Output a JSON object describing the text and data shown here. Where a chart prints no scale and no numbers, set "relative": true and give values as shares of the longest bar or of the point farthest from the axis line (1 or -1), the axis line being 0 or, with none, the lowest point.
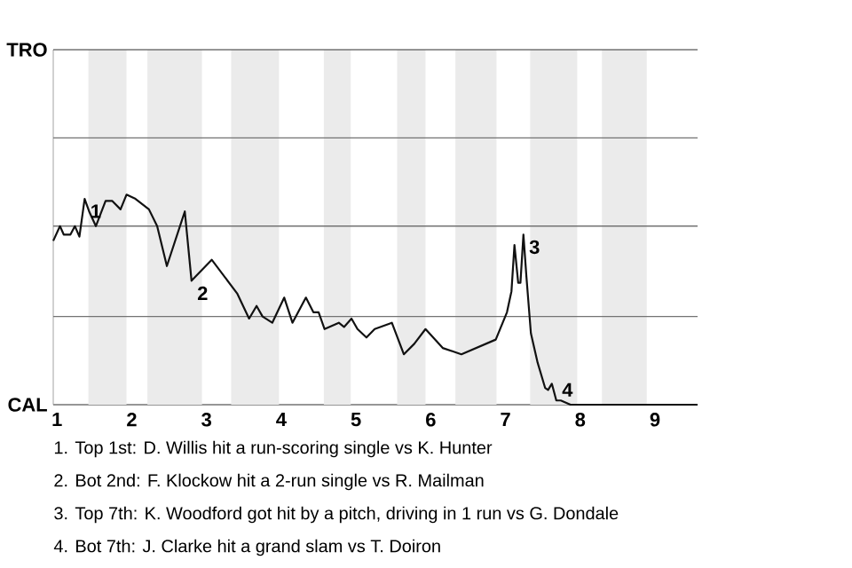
{
  "chart_data": {
    "type": "line",
    "color": "#111111",
    "relative": true,
    "x": [
      0.95,
      1.04,
      1.09,
      1.18,
      1.24,
      1.3,
      1.37,
      1.43,
      1.52,
      1.65,
      1.74,
      1.85,
      1.93,
      2.05,
      2.23,
      2.34,
      2.47,
      2.71,
      2.8,
      3.07,
      3.24,
      3.41,
      3.57,
      3.67,
      3.75,
      3.88,
      4.04,
      4.15,
      4.33,
      4.43,
      4.5,
      4.58,
      4.77,
      4.84,
      4.94,
      5.02,
      5.14,
      5.25,
      5.48,
      5.64,
      5.78,
      5.93,
      6.16,
      6.41,
      6.87,
      7.02,
      7.08,
      7.12,
      7.17,
      7.2,
      7.24,
      7.28,
      7.34,
      7.43,
      7.53,
      7.57,
      7.62,
      7.68,
      7.74,
      7.87,
      9.57
    ],
    "values": [
      0.78,
      0.85,
      0.81,
      0.81,
      0.85,
      0.8,
      0.98,
      0.92,
      0.85,
      0.97,
      0.97,
      0.93,
      1,
      0.98,
      0.93,
      0.85,
      0.66,
      0.92,
      0.59,
      0.69,
      0.61,
      0.53,
      0.41,
      0.47,
      0.42,
      0.39,
      0.51,
      0.39,
      0.51,
      0.44,
      0.44,
      0.36,
      0.39,
      0.37,
      0.41,
      0.36,
      0.32,
      0.36,
      0.39,
      0.24,
      0.29,
      0.36,
      0.27,
      0.24,
      0.31,
      0.44,
      0.54,
      0.76,
      0.58,
      0.58,
      0.81,
      0.61,
      0.34,
      0.2,
      0.08,
      0.07,
      0.1,
      0.02,
      0.02,
      0,
      0
    ],
    "xlim": [
      0.95,
      9.57
    ],
    "xticks": [
      1,
      2,
      3,
      4,
      5,
      6,
      7,
      8,
      9
    ],
    "ref_lines": [
      {
        "axis": "y",
        "value": 0.42,
        "color": "#737373"
      },
      {
        "axis": "y",
        "value": 0.85,
        "color": "#737373"
      },
      {
        "axis": "y",
        "value": 1.27,
        "color": "#737373"
      },
      {
        "axis": "y",
        "value": 1.69,
        "color": "#737373"
      }
    ],
    "bands": [
      {
        "axis": "x",
        "from": 1.42,
        "to": 1.93,
        "color": "#ebebeb"
      },
      {
        "axis": "x",
        "from": 2.21,
        "to": 2.94,
        "color": "#ebebeb"
      },
      {
        "axis": "x",
        "from": 3.33,
        "to": 3.97,
        "color": "#ebebeb"
      },
      {
        "axis": "x",
        "from": 4.57,
        "to": 4.93,
        "color": "#ebebeb"
      },
      {
        "axis": "x",
        "from": 5.55,
        "to": 5.93,
        "color": "#ebebeb"
      },
      {
        "axis": "x",
        "from": 6.33,
        "to": 6.88,
        "color": "#ebebeb"
      },
      {
        "axis": "x",
        "from": 7.33,
        "to": 7.96,
        "color": "#ebebeb"
      },
      {
        "axis": "x",
        "from": 8.29,
        "to": 8.89,
        "color": "#ebebeb"
      }
    ],
    "annotations": [
      "TRO",
      "CAL",
      {
        "text": "1",
        "x": 1.37,
        "y": 0.98
      },
      {
        "text": "2",
        "x": 2.8,
        "y": 0.59
      },
      {
        "text": "3",
        "x": 7.24,
        "y": 0.81
      },
      {
        "text": "4",
        "x": 7.68,
        "y": 0.02
      },
      "1. Top 1st: D. Willis hit a run-scoring single vs K. Hunter",
      "2. Bot 2nd: F. Klockow hit a 2-run single vs R. Mailman",
      "3. Top 7th: K. Woodford got hit by a pitch, driving in 1 run vs G. Dondale",
      "4. Bot 7th: J. Clarke hit a grand slam vs T. Doiron"
    ]
  }
}
